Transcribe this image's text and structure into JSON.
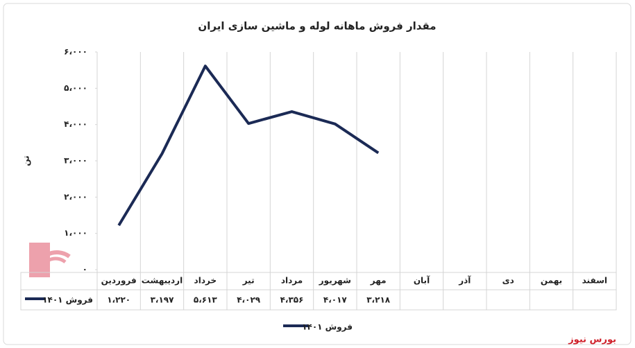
{
  "chart_data": {
    "type": "line",
    "title": "مقدار فروش ماهانه لوله و ماشین سازی ایران",
    "y_label": "تن",
    "categories": [
      "فروردین",
      "اردیبهشت",
      "خرداد",
      "تیر",
      "مرداد",
      "شهریور",
      "مهر",
      "آبان",
      "آذر",
      "دی",
      "بهمن",
      "اسفند"
    ],
    "series": [
      {
        "name": "فروش ۱۴۰۱",
        "color": "#1b2a55",
        "values": [
          1220,
          3197,
          5613,
          4029,
          4356,
          4017,
          3218,
          null,
          null,
          null,
          null,
          null
        ],
        "value_labels": [
          "۱،۲۲۰",
          "۳،۱۹۷",
          "۵،۶۱۳",
          "۴،۰۲۹",
          "۴،۳۵۶",
          "۴،۰۱۷",
          "۳،۲۱۸",
          null,
          null,
          null,
          null,
          null
        ]
      }
    ],
    "ylim": [
      0,
      6000
    ],
    "yticks": [
      {
        "value": 0,
        "label": "۰"
      },
      {
        "value": 1000,
        "label": "۱،۰۰۰"
      },
      {
        "value": 2000,
        "label": "۲،۰۰۰"
      },
      {
        "value": 3000,
        "label": "۳،۰۰۰"
      },
      {
        "value": 4000,
        "label": "۴،۰۰۰"
      },
      {
        "value": 5000,
        "label": "۵،۰۰۰"
      },
      {
        "value": 6000,
        "label": "۶،۰۰۰"
      }
    ],
    "legend": "bottom",
    "watermark": "بورس نیوز"
  }
}
